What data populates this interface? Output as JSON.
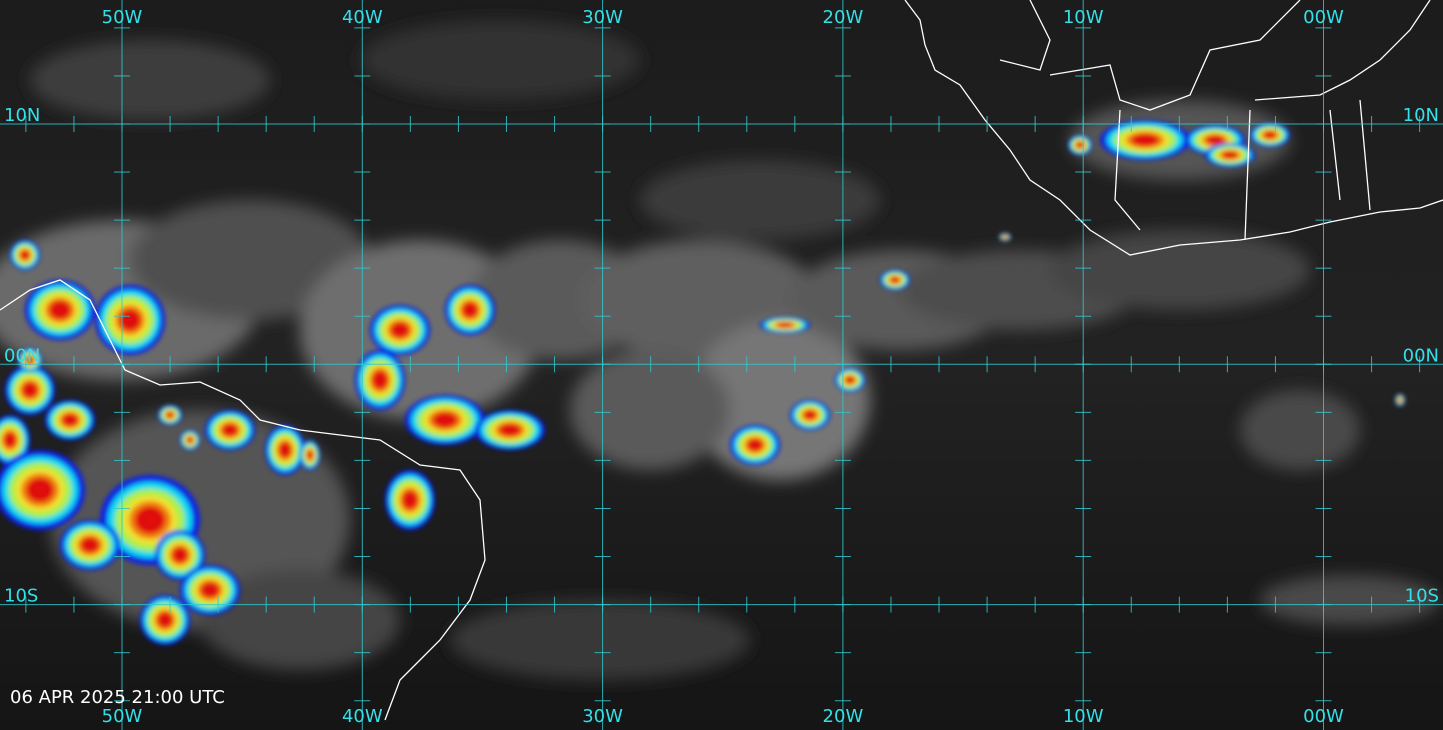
{
  "map": {
    "longitude_labels": [
      "50W",
      "40W",
      "30W",
      "20W",
      "10W",
      "00W"
    ],
    "latitude_labels": [
      "10N",
      "00N",
      "10S"
    ],
    "timestamp": "06 APR 2025 21:00 UTC"
  }
}
